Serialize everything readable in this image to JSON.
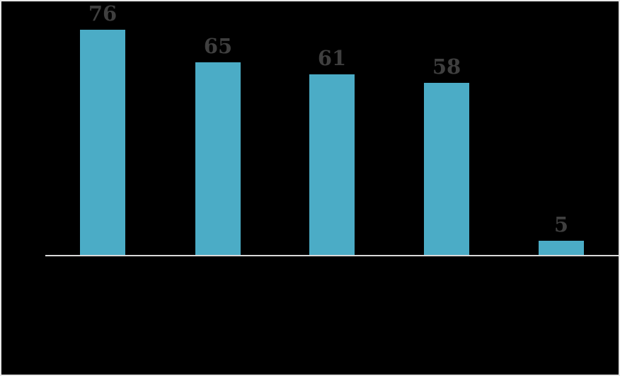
{
  "chart_data": {
    "type": "bar",
    "values": [
      76,
      65,
      61,
      58,
      5
    ],
    "data_labels": [
      "76",
      "65",
      "61",
      "58",
      "5"
    ],
    "ylim": [
      0,
      85
    ],
    "grid": false,
    "legend": false,
    "colors": {
      "bar_fill": "#4BACC6",
      "data_label_text": "#3F3F3F",
      "axis_line": "#D9D9D9",
      "background": "#000000",
      "frame_border": "#E8E8E8"
    }
  }
}
